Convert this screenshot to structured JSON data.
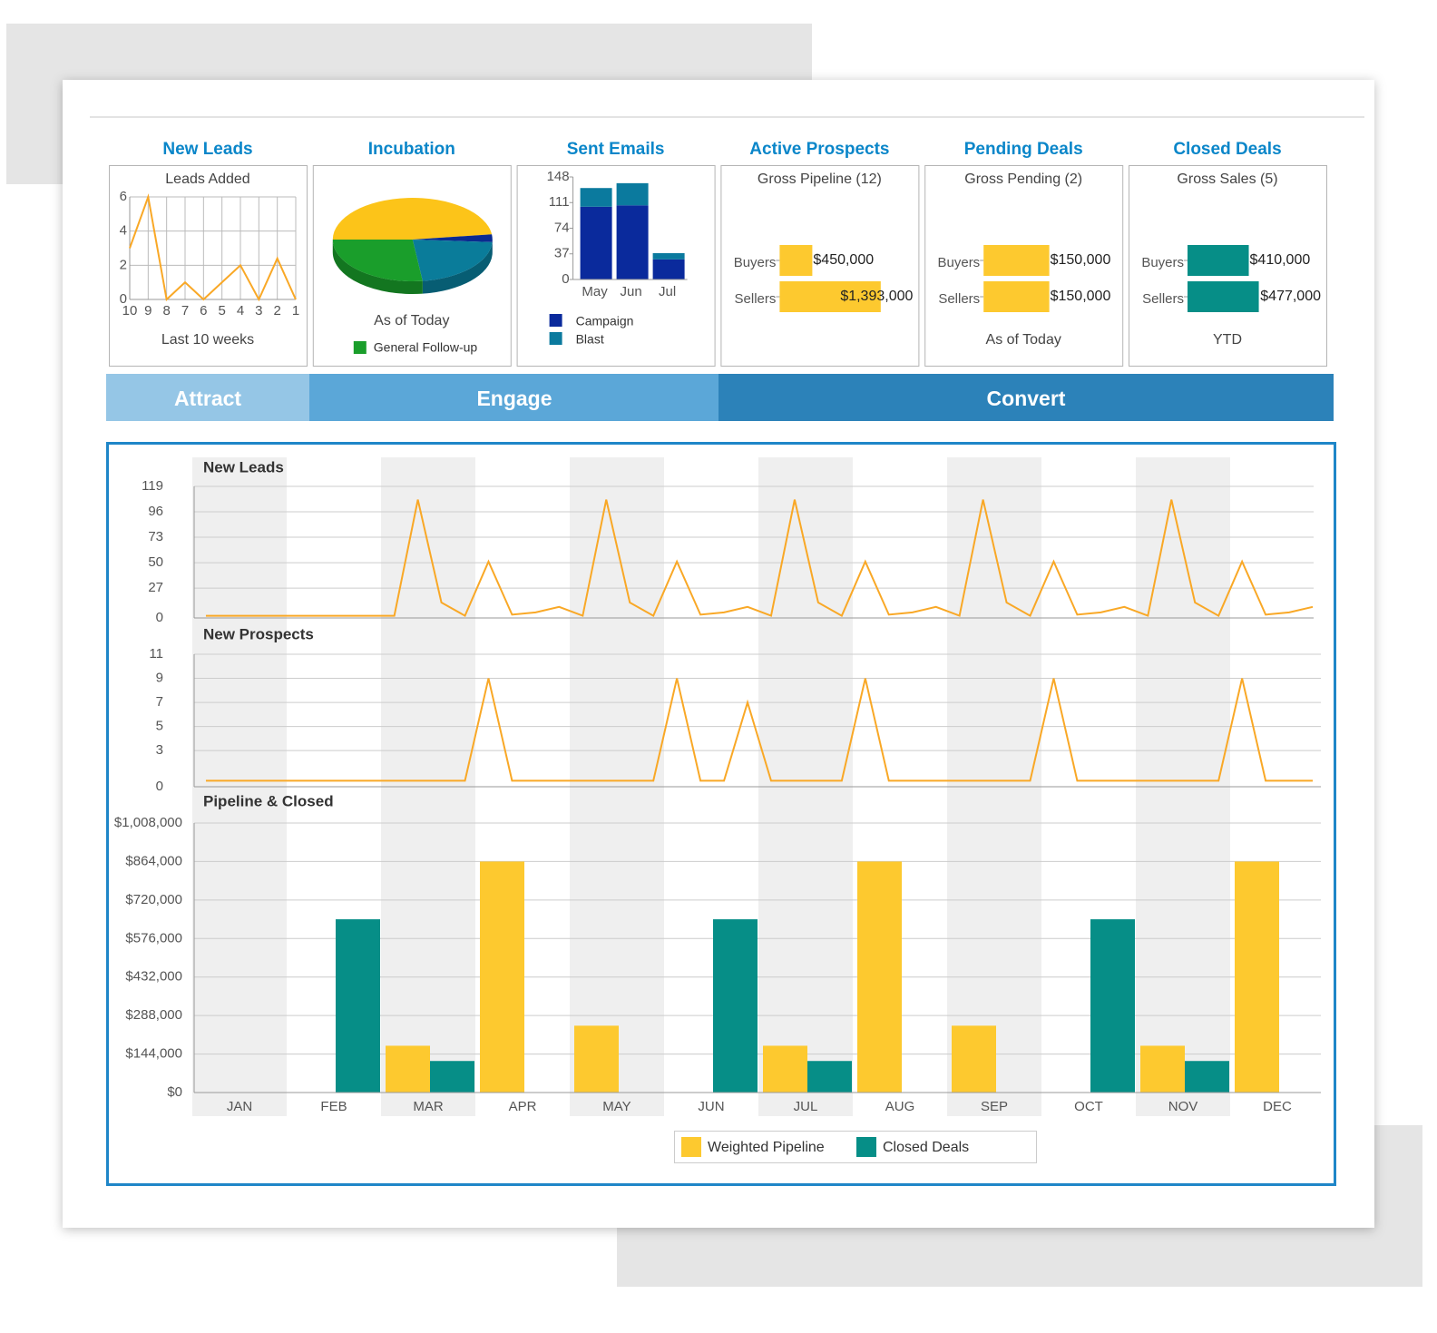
{
  "stages": [
    "Attract",
    "Engage",
    "Convert"
  ],
  "chart_data": [
    {
      "type": "line",
      "heading": "New Leads",
      "title": "Leads Added",
      "caption": "Last 10 weeks",
      "categories": [
        "10",
        "9",
        "8",
        "7",
        "6",
        "5",
        "4",
        "3",
        "2",
        "1"
      ],
      "values": [
        3,
        6,
        0,
        1,
        0,
        1,
        2,
        0,
        2.4,
        0
      ],
      "color": "#f9a826",
      "ylim": [
        0,
        6
      ],
      "yticks": [
        0,
        2,
        4,
        6
      ],
      "grid": true
    },
    {
      "type": "pie",
      "heading": "Incubation",
      "caption": "As of Today",
      "categories": [
        null,
        null,
        null,
        "General Follow-up"
      ],
      "values": [
        48,
        3,
        22,
        27
      ],
      "colors": [
        "#fcc419",
        "#0a2a8f",
        "#0a7c9a",
        "#1a9e2b"
      ]
    },
    {
      "type": "bar",
      "heading": "Sent Emails",
      "stacked": true,
      "categories": [
        "May",
        "Jun",
        "Jul"
      ],
      "series": [
        {
          "name": "Campaign",
          "color": "#0a2a9c",
          "values": [
            105,
            107,
            29
          ]
        },
        {
          "name": "Blast",
          "color": "#0b7a9e",
          "values": [
            27,
            32,
            9
          ]
        }
      ],
      "ylim": [
        0,
        148
      ],
      "yticks": [
        0,
        37,
        74,
        111,
        148
      ]
    },
    {
      "type": "hbar",
      "heading": "Active Prospects",
      "title": "Gross Pipeline (12)",
      "categories": [
        "Buyers",
        "Sellers"
      ],
      "values": [
        450000,
        1393000
      ],
      "value_labels": [
        "$450,000",
        "$1,393,000"
      ],
      "color": "#fdc92f",
      "xlim": [
        0,
        1750000
      ]
    },
    {
      "type": "hbar",
      "heading": "Pending Deals",
      "title": "Gross Pending (2)",
      "caption": "As of Today",
      "categories": [
        "Buyers",
        "Sellers"
      ],
      "values": [
        150000,
        150000
      ],
      "value_labels": [
        "$150,000",
        "$150,000"
      ],
      "color": "#fdc92f",
      "xlim": [
        0,
        290000
      ]
    },
    {
      "type": "hbar",
      "heading": "Closed Deals",
      "title": "Gross Sales (5)",
      "caption": "YTD",
      "categories": [
        "Buyers",
        "Sellers"
      ],
      "values": [
        410000,
        477000
      ],
      "value_labels": [
        "$410,000",
        "$477,000"
      ],
      "color": "#068e87",
      "xlim": [
        0,
        850000
      ]
    },
    {
      "type": "line",
      "title": "New Leads",
      "categories": [
        null,
        null,
        null,
        null,
        null,
        null,
        null,
        null,
        null,
        null,
        null,
        null,
        null,
        null,
        null,
        null,
        null,
        null,
        null,
        null,
        null,
        null,
        null,
        null,
        null,
        null,
        null,
        null,
        null,
        null,
        null,
        null,
        null,
        null,
        null,
        null,
        null,
        null,
        null,
        null,
        null,
        null,
        null,
        null,
        null,
        null,
        null,
        null
      ],
      "values": [
        2,
        2,
        2,
        2,
        2,
        2,
        2,
        2,
        2,
        107,
        14,
        2,
        51,
        3,
        5,
        10,
        2,
        107,
        14,
        2,
        51,
        3,
        5,
        10,
        2,
        107,
        14,
        2,
        51,
        3,
        5,
        10,
        2,
        107,
        14,
        2,
        51,
        3,
        5,
        10,
        2,
        107,
        14,
        2,
        51,
        3,
        5,
        10
      ],
      "color": "#f9a826",
      "ylim": [
        0,
        119
      ],
      "yticks": [
        0,
        27,
        50,
        73,
        96,
        119
      ],
      "grid": true
    },
    {
      "type": "line",
      "title": "New Prospects",
      "categories": [
        null,
        null,
        null,
        null,
        null,
        null,
        null,
        null,
        null,
        null,
        null,
        null,
        null,
        null,
        null,
        null,
        null,
        null,
        null,
        null,
        null,
        null,
        null,
        null,
        null,
        null,
        null,
        null,
        null,
        null,
        null,
        null,
        null,
        null,
        null,
        null,
        null,
        null,
        null,
        null,
        null,
        null,
        null,
        null,
        null,
        null,
        null,
        null
      ],
      "values": [
        0.5,
        0.5,
        0.5,
        0.5,
        0.5,
        0.5,
        0.5,
        0.5,
        0.5,
        0.5,
        0.5,
        0.5,
        9,
        0.5,
        0.5,
        0.5,
        0.5,
        0.5,
        0.5,
        0.5,
        9,
        0.5,
        0.5,
        7,
        0.5,
        0.5,
        0.5,
        0.5,
        9,
        0.5,
        0.5,
        0.5,
        0.5,
        0.5,
        0.5,
        0.5,
        9,
        0.5,
        0.5,
        0.5,
        0.5,
        0.5,
        0.5,
        0.5,
        9,
        0.5,
        0.5,
        0.5
      ],
      "color": "#f9a826",
      "ylim": [
        0,
        11
      ],
      "yticks": [
        0,
        3,
        5,
        7,
        9,
        11
      ],
      "grid": true
    },
    {
      "type": "bar",
      "title": "Pipeline & Closed",
      "categories": [
        "JAN",
        "FEB",
        "MAR",
        "APR",
        "MAY",
        "JUN",
        "JUL",
        "AUG",
        "SEP",
        "OCT",
        "NOV",
        "DEC"
      ],
      "series": [
        {
          "name": "Weighted Pipeline",
          "color": "#fdc92f",
          "values": [
            null,
            null,
            175000,
            864000,
            250000,
            null,
            175000,
            864000,
            250000,
            null,
            175000,
            864000
          ]
        },
        {
          "name": "Closed Deals",
          "color": "#068e87",
          "values": [
            null,
            648000,
            118000,
            null,
            null,
            648000,
            118000,
            null,
            null,
            648000,
            118000,
            null
          ]
        }
      ],
      "ylim": [
        0,
        1008000
      ],
      "yticks": [
        {
          "value": 0,
          "label": "$0"
        },
        {
          "value": 144000,
          "label": "$144,000"
        },
        {
          "value": 288000,
          "label": "$288,000"
        },
        {
          "value": 432000,
          "label": "$432,000"
        },
        {
          "value": 576000,
          "label": "$576,000"
        },
        {
          "value": 720000,
          "label": "$720,000"
        },
        {
          "value": 864000,
          "label": "$864,000"
        },
        {
          "value": 1008000,
          "label": "$1,008,000"
        }
      ],
      "grid": true,
      "legend": "bottom"
    }
  ]
}
